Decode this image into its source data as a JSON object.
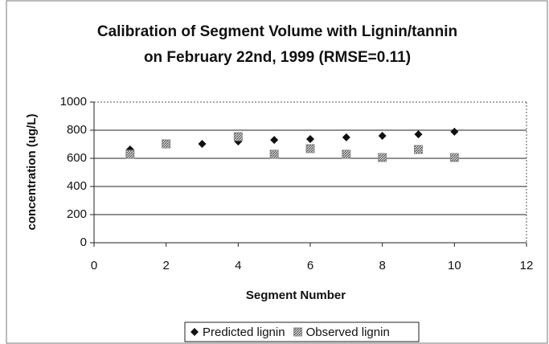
{
  "chart_data": {
    "type": "scatter",
    "title": [
      "Calibration of Segment Volume with Lignin/tannin",
      "on February 22nd, 1999 (RMSE=0.11)"
    ],
    "x_label": "Segment Number",
    "y_label": "concentration (ug/L)",
    "xlim": [
      0,
      12
    ],
    "xticks": [
      0,
      2,
      4,
      6,
      8,
      10,
      12
    ],
    "ylim": [
      0,
      1000
    ],
    "yticks": [
      0,
      200,
      400,
      600,
      800,
      1000
    ],
    "grid": true,
    "legend": "bottom",
    "series": [
      {
        "name": "Predicted lignin",
        "color": "#111111",
        "marker": "diamond",
        "x": [
          1,
          2,
          3,
          4,
          5,
          6,
          7,
          8,
          9,
          10
        ],
        "values": [
          663,
          697,
          703,
          720,
          731,
          737,
          749,
          760,
          771,
          789
        ]
      },
      {
        "name": "Observed lignin",
        "color": "#888888",
        "marker": "square",
        "x": [
          1,
          2,
          4,
          5,
          6,
          7,
          8,
          9,
          10
        ],
        "values": [
          629,
          703,
          754,
          629,
          669,
          629,
          606,
          663,
          606
        ]
      }
    ]
  }
}
